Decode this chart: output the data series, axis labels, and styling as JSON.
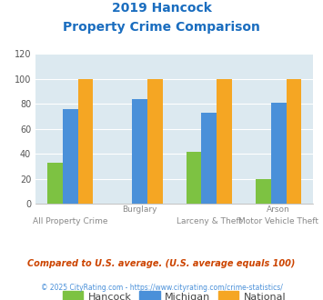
{
  "title_line1": "2019 Hancock",
  "title_line2": "Property Crime Comparison",
  "cat_top": [
    "",
    "Burglary",
    "",
    "Arson"
  ],
  "cat_bot": [
    "All Property Crime",
    "",
    "Larceny & Theft",
    "Motor Vehicle Theft"
  ],
  "hancock_values": [
    33,
    0,
    42,
    20
  ],
  "michigan_values": [
    76,
    84,
    73,
    81
  ],
  "national_values": [
    100,
    100,
    100,
    100
  ],
  "hancock_color": "#7dc242",
  "michigan_color": "#4a90d9",
  "national_color": "#f5a623",
  "ylim": [
    0,
    120
  ],
  "yticks": [
    0,
    20,
    40,
    60,
    80,
    100,
    120
  ],
  "plot_bg": "#dce9f0",
  "title_color": "#1a6dbf",
  "legend_labels": [
    "Hancock",
    "Michigan",
    "National"
  ],
  "footnote1": "Compared to U.S. average. (U.S. average equals 100)",
  "footnote2": "© 2025 CityRating.com - https://www.cityrating.com/crime-statistics/",
  "footnote1_color": "#cc4400",
  "footnote2_color": "#4a90d9"
}
